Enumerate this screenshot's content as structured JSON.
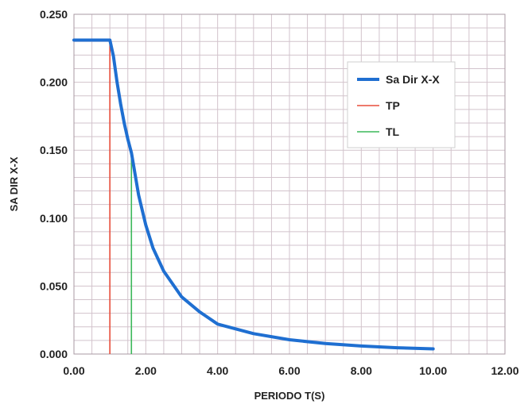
{
  "chart_data": {
    "type": "line",
    "title": "",
    "xlabel": "PERIODO T(S)",
    "ylabel": "SA DIR X-X",
    "xlim": [
      0,
      12
    ],
    "ylim": [
      0,
      0.25
    ],
    "x_ticks": [
      "0.00",
      "2.00",
      "4.00",
      "6.00",
      "8.00",
      "10.00",
      "12.00"
    ],
    "y_ticks": [
      "0.000",
      "0.050",
      "0.100",
      "0.150",
      "0.200",
      "0.250"
    ],
    "grid": true,
    "legend_position": "right",
    "series": [
      {
        "name": "Sa Dir X-X",
        "color": "#1f6fd1",
        "points": [
          [
            0.0,
            0.231
          ],
          [
            1.0,
            0.231
          ],
          [
            1.1,
            0.219
          ],
          [
            1.2,
            0.2
          ],
          [
            1.3,
            0.184
          ],
          [
            1.4,
            0.17
          ],
          [
            1.5,
            0.158
          ],
          [
            1.6,
            0.148
          ],
          [
            1.8,
            0.117
          ],
          [
            2.0,
            0.095
          ],
          [
            2.2,
            0.078
          ],
          [
            2.5,
            0.061
          ],
          [
            3.0,
            0.042
          ],
          [
            3.5,
            0.031
          ],
          [
            4.0,
            0.022
          ],
          [
            5.0,
            0.015
          ],
          [
            6.0,
            0.0105
          ],
          [
            7.0,
            0.0077
          ],
          [
            8.0,
            0.0059
          ],
          [
            9.0,
            0.0046
          ],
          [
            10.0,
            0.0038
          ]
        ]
      },
      {
        "name": "TP",
        "color": "#e84e3c",
        "x": 1.0
      },
      {
        "name": "TL",
        "color": "#3cb85a",
        "x": 1.6
      }
    ]
  }
}
